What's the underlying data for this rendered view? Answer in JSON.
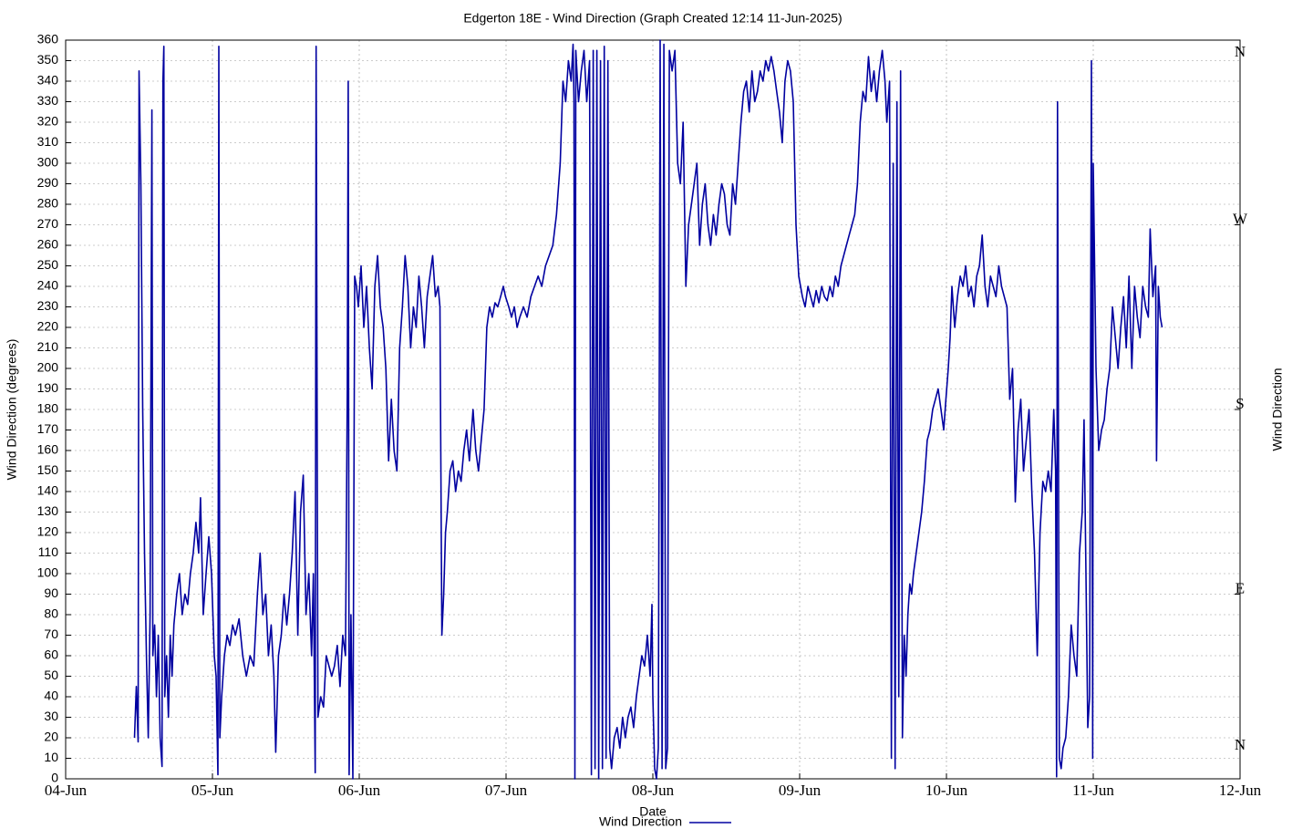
{
  "chart_data": {
    "type": "line",
    "title": "Edgerton 18E - Wind Direction (Graph Created 12:14 11-Jun-2025)",
    "x_label": "Date",
    "y_label": "Wind Direction (degrees)",
    "y2_label": "Wind Direction",
    "x": [
      "2025-06-04T11:15",
      "2025-06-04T11:33",
      "2025-06-04T11:51",
      "2025-06-04T12:00",
      "2025-06-04T12:18",
      "2025-06-04T12:36",
      "2025-06-04T12:54",
      "2025-06-04T13:12",
      "2025-06-04T13:30",
      "2025-06-04T13:48",
      "2025-06-04T14:06",
      "2025-06-04T14:15",
      "2025-06-04T14:33",
      "2025-06-04T14:51",
      "2025-06-04T15:09",
      "2025-06-04T15:27",
      "2025-06-04T15:45",
      "2025-06-04T15:54",
      "2025-06-04T16:03",
      "2025-06-04T16:12",
      "2025-06-04T16:30",
      "2025-06-04T16:48",
      "2025-06-04T17:06",
      "2025-06-04T17:24",
      "2025-06-04T17:42",
      "2025-06-04T18:09",
      "2025-06-04T18:36",
      "2025-06-04T19:03",
      "2025-06-04T19:30",
      "2025-06-04T19:57",
      "2025-06-04T20:24",
      "2025-06-04T20:51",
      "2025-06-04T21:18",
      "2025-06-04T21:45",
      "2025-06-04T22:03",
      "2025-06-04T22:30",
      "2025-06-04T22:57",
      "2025-06-04T23:24",
      "2025-06-04T23:51",
      "2025-06-05T00:18",
      "2025-06-05T00:36",
      "2025-06-05T00:54",
      "2025-06-05T01:03",
      "2025-06-05T01:12",
      "2025-06-05T01:30",
      "2025-06-05T01:57",
      "2025-06-05T02:24",
      "2025-06-05T02:51",
      "2025-06-05T03:18",
      "2025-06-05T03:45",
      "2025-06-05T04:21",
      "2025-06-05T04:57",
      "2025-06-05T05:33",
      "2025-06-05T06:09",
      "2025-06-05T06:45",
      "2025-06-05T07:21",
      "2025-06-05T07:48",
      "2025-06-05T08:15",
      "2025-06-05T08:42",
      "2025-06-05T09:09",
      "2025-06-05T09:36",
      "2025-06-05T10:03",
      "2025-06-05T10:21",
      "2025-06-05T10:48",
      "2025-06-05T11:15",
      "2025-06-05T11:42",
      "2025-06-05T12:09",
      "2025-06-05T12:36",
      "2025-06-05T13:03",
      "2025-06-05T13:30",
      "2025-06-05T13:57",
      "2025-06-05T14:24",
      "2025-06-05T14:51",
      "2025-06-05T15:18",
      "2025-06-05T15:45",
      "2025-06-05T16:12",
      "2025-06-05T16:30",
      "2025-06-05T16:48",
      "2025-06-05T16:57",
      "2025-06-05T17:15",
      "2025-06-05T17:42",
      "2025-06-05T18:09",
      "2025-06-05T18:36",
      "2025-06-05T19:03",
      "2025-06-05T19:30",
      "2025-06-05T19:57",
      "2025-06-05T20:24",
      "2025-06-05T20:51",
      "2025-06-05T21:18",
      "2025-06-05T21:45",
      "2025-06-05T22:03",
      "2025-06-05T22:12",
      "2025-06-05T22:21",
      "2025-06-05T22:39",
      "2025-06-05T22:57",
      "2025-06-05T23:15",
      "2025-06-05T23:33",
      "2025-06-05T23:51",
      "2025-06-06T00:18",
      "2025-06-06T00:45",
      "2025-06-06T01:12",
      "2025-06-06T01:39",
      "2025-06-06T02:06",
      "2025-06-06T02:33",
      "2025-06-06T03:00",
      "2025-06-06T03:27",
      "2025-06-06T03:54",
      "2025-06-06T04:21",
      "2025-06-06T04:48",
      "2025-06-06T05:15",
      "2025-06-06T05:42",
      "2025-06-06T06:09",
      "2025-06-06T06:36",
      "2025-06-06T07:03",
      "2025-06-06T07:30",
      "2025-06-06T07:57",
      "2025-06-06T08:24",
      "2025-06-06T08:51",
      "2025-06-06T09:18",
      "2025-06-06T09:45",
      "2025-06-06T10:12",
      "2025-06-06T10:39",
      "2025-06-06T11:06",
      "2025-06-06T11:33",
      "2025-06-06T12:00",
      "2025-06-06T12:27",
      "2025-06-06T12:54",
      "2025-06-06T13:12",
      "2025-06-06T13:30",
      "2025-06-06T13:48",
      "2025-06-06T14:06",
      "2025-06-06T14:24",
      "2025-06-06T14:51",
      "2025-06-06T15:18",
      "2025-06-06T15:45",
      "2025-06-06T16:12",
      "2025-06-06T16:39",
      "2025-06-06T17:06",
      "2025-06-06T17:33",
      "2025-06-06T18:00",
      "2025-06-06T18:36",
      "2025-06-06T19:03",
      "2025-06-06T19:30",
      "2025-06-06T19:57",
      "2025-06-06T20:24",
      "2025-06-06T20:51",
      "2025-06-06T21:18",
      "2025-06-06T21:45",
      "2025-06-06T22:12",
      "2025-06-06T22:39",
      "2025-06-06T23:06",
      "2025-06-06T23:33",
      "2025-06-06T23:55",
      "2025-06-07T00:27",
      "2025-06-07T00:54",
      "2025-06-07T01:21",
      "2025-06-07T01:48",
      "2025-06-07T02:15",
      "2025-06-07T02:51",
      "2025-06-07T03:27",
      "2025-06-07T04:03",
      "2025-06-07T04:39",
      "2025-06-07T05:15",
      "2025-06-07T05:51",
      "2025-06-07T06:27",
      "2025-06-07T07:03",
      "2025-06-07T07:39",
      "2025-06-07T08:15",
      "2025-06-07T08:51",
      "2025-06-07T09:18",
      "2025-06-07T09:45",
      "2025-06-07T10:12",
      "2025-06-07T10:39",
      "2025-06-07T10:57",
      "2025-06-07T11:06",
      "2025-06-07T11:15",
      "2025-06-07T11:24",
      "2025-06-07T11:51",
      "2025-06-07T12:18",
      "2025-06-07T12:45",
      "2025-06-07T13:12",
      "2025-06-07T13:39",
      "2025-06-07T13:57",
      "2025-06-07T14:15",
      "2025-06-07T14:33",
      "2025-06-07T14:51",
      "2025-06-07T15:09",
      "2025-06-07T15:27",
      "2025-06-07T15:45",
      "2025-06-07T16:03",
      "2025-06-07T16:21",
      "2025-06-07T16:39",
      "2025-06-07T16:57",
      "2025-06-07T17:15",
      "2025-06-07T17:42",
      "2025-06-07T18:09",
      "2025-06-07T18:36",
      "2025-06-07T19:03",
      "2025-06-07T19:30",
      "2025-06-07T19:57",
      "2025-06-07T20:24",
      "2025-06-07T20:51",
      "2025-06-07T21:18",
      "2025-06-07T21:45",
      "2025-06-07T22:12",
      "2025-06-07T22:39",
      "2025-06-07T23:06",
      "2025-06-07T23:33",
      "2025-06-07T23:51",
      "2025-06-08T00:00",
      "2025-06-08T00:18",
      "2025-06-08T00:36",
      "2025-06-08T00:54",
      "2025-06-08T01:12",
      "2025-06-08T01:30",
      "2025-06-08T01:48",
      "2025-06-08T02:06",
      "2025-06-08T02:24",
      "2025-06-08T02:42",
      "2025-06-08T03:09",
      "2025-06-08T03:36",
      "2025-06-08T04:03",
      "2025-06-08T04:30",
      "2025-06-08T04:57",
      "2025-06-08T05:24",
      "2025-06-08T05:51",
      "2025-06-08T06:18",
      "2025-06-08T06:45",
      "2025-06-08T07:12",
      "2025-06-08T07:39",
      "2025-06-08T08:06",
      "2025-06-08T08:33",
      "2025-06-08T09:00",
      "2025-06-08T09:27",
      "2025-06-08T09:54",
      "2025-06-08T10:21",
      "2025-06-08T10:48",
      "2025-06-08T11:15",
      "2025-06-08T11:42",
      "2025-06-08T12:09",
      "2025-06-08T12:36",
      "2025-06-08T13:03",
      "2025-06-08T13:30",
      "2025-06-08T13:57",
      "2025-06-08T14:24",
      "2025-06-08T14:51",
      "2025-06-08T15:18",
      "2025-06-08T15:45",
      "2025-06-08T16:12",
      "2025-06-08T16:39",
      "2025-06-08T17:06",
      "2025-06-08T17:33",
      "2025-06-08T18:00",
      "2025-06-08T18:27",
      "2025-06-08T18:54",
      "2025-06-08T19:21",
      "2025-06-08T19:48",
      "2025-06-08T20:15",
      "2025-06-08T20:42",
      "2025-06-08T21:09",
      "2025-06-08T21:36",
      "2025-06-08T22:03",
      "2025-06-08T22:30",
      "2025-06-08T22:57",
      "2025-06-08T23:24",
      "2025-06-08T23:51",
      "2025-06-09T00:27",
      "2025-06-09T00:54",
      "2025-06-09T01:21",
      "2025-06-09T01:48",
      "2025-06-09T02:15",
      "2025-06-09T02:42",
      "2025-06-09T03:09",
      "2025-06-09T03:36",
      "2025-06-09T04:03",
      "2025-06-09T04:30",
      "2025-06-09T04:57",
      "2025-06-09T05:24",
      "2025-06-09T05:51",
      "2025-06-09T06:18",
      "2025-06-09T06:45",
      "2025-06-09T07:12",
      "2025-06-09T07:39",
      "2025-06-09T08:06",
      "2025-06-09T08:33",
      "2025-06-09T09:00",
      "2025-06-09T09:27",
      "2025-06-09T09:54",
      "2025-06-09T10:21",
      "2025-06-09T10:48",
      "2025-06-09T11:15",
      "2025-06-09T11:42",
      "2025-06-09T12:09",
      "2025-06-09T12:36",
      "2025-06-09T13:03",
      "2025-06-09T13:30",
      "2025-06-09T13:57",
      "2025-06-09T14:15",
      "2025-06-09T14:42",
      "2025-06-09T15:00",
      "2025-06-09T15:18",
      "2025-06-09T15:36",
      "2025-06-09T15:54",
      "2025-06-09T16:12",
      "2025-06-09T16:30",
      "2025-06-09T16:48",
      "2025-06-09T17:06",
      "2025-06-09T17:24",
      "2025-06-09T17:42",
      "2025-06-09T18:00",
      "2025-06-09T18:18",
      "2025-06-09T18:36",
      "2025-06-09T19:03",
      "2025-06-09T19:30",
      "2025-06-09T19:57",
      "2025-06-09T20:24",
      "2025-06-09T20:51",
      "2025-06-09T21:18",
      "2025-06-09T21:45",
      "2025-06-09T22:12",
      "2025-06-09T22:39",
      "2025-06-09T23:06",
      "2025-06-09T23:33",
      "2025-06-09T23:55",
      "2025-06-10T00:18",
      "2025-06-10T00:36",
      "2025-06-10T00:54",
      "2025-06-10T01:21",
      "2025-06-10T01:48",
      "2025-06-10T02:15",
      "2025-06-10T02:42",
      "2025-06-10T03:09",
      "2025-06-10T03:36",
      "2025-06-10T04:03",
      "2025-06-10T04:30",
      "2025-06-10T04:57",
      "2025-06-10T05:24",
      "2025-06-10T05:51",
      "2025-06-10T06:18",
      "2025-06-10T06:45",
      "2025-06-10T07:12",
      "2025-06-10T07:39",
      "2025-06-10T08:06",
      "2025-06-10T08:33",
      "2025-06-10T09:00",
      "2025-06-10T09:27",
      "2025-06-10T09:54",
      "2025-06-10T10:21",
      "2025-06-10T10:48",
      "2025-06-10T11:15",
      "2025-06-10T11:42",
      "2025-06-10T12:09",
      "2025-06-10T12:36",
      "2025-06-10T13:03",
      "2025-06-10T13:30",
      "2025-06-10T13:57",
      "2025-06-10T14:24",
      "2025-06-10T14:51",
      "2025-06-10T15:18",
      "2025-06-10T15:45",
      "2025-06-10T16:12",
      "2025-06-10T16:39",
      "2025-06-10T17:06",
      "2025-06-10T17:33",
      "2025-06-10T17:51",
      "2025-06-10T18:00",
      "2025-06-10T18:09",
      "2025-06-10T18:27",
      "2025-06-10T18:45",
      "2025-06-10T19:03",
      "2025-06-10T19:30",
      "2025-06-10T19:57",
      "2025-06-10T20:24",
      "2025-06-10T20:51",
      "2025-06-10T21:18",
      "2025-06-10T21:45",
      "2025-06-10T22:12",
      "2025-06-10T22:30",
      "2025-06-10T22:48",
      "2025-06-10T23:06",
      "2025-06-10T23:24",
      "2025-06-10T23:42",
      "2025-06-10T23:55",
      "2025-06-11T00:00",
      "2025-06-11T00:27",
      "2025-06-11T00:54",
      "2025-06-11T01:21",
      "2025-06-11T01:48",
      "2025-06-11T02:15",
      "2025-06-11T02:42",
      "2025-06-11T03:09",
      "2025-06-11T03:36",
      "2025-06-11T04:03",
      "2025-06-11T04:30",
      "2025-06-11T04:57",
      "2025-06-11T05:24",
      "2025-06-11T05:51",
      "2025-06-11T06:18",
      "2025-06-11T06:45",
      "2025-06-11T07:12",
      "2025-06-11T07:39",
      "2025-06-11T08:06",
      "2025-06-11T08:33",
      "2025-06-11T09:00",
      "2025-06-11T09:18",
      "2025-06-11T09:45",
      "2025-06-11T10:12",
      "2025-06-11T10:21",
      "2025-06-11T10:39",
      "2025-06-11T10:57",
      "2025-06-11T11:15"
    ],
    "series": [
      {
        "name": "Wind Direction",
        "color": "#0000a0",
        "values": [
          20,
          45,
          18,
          345,
          290,
          180,
          110,
          60,
          20,
          80,
          326,
          60,
          75,
          40,
          70,
          20,
          6,
          340,
          357,
          40,
          60,
          30,
          70,
          50,
          75,
          90,
          100,
          80,
          90,
          85,
          100,
          110,
          125,
          110,
          137,
          80,
          100,
          118,
          100,
          60,
          50,
          2,
          357,
          20,
          40,
          60,
          70,
          65,
          75,
          70,
          78,
          60,
          50,
          60,
          55,
          90,
          110,
          80,
          90,
          60,
          75,
          50,
          13,
          60,
          70,
          90,
          75,
          90,
          110,
          140,
          70,
          130,
          148,
          80,
          100,
          60,
          100,
          3,
          357,
          30,
          40,
          35,
          60,
          55,
          50,
          55,
          65,
          45,
          70,
          60,
          190,
          340,
          2,
          80,
          0,
          245,
          240,
          230,
          250,
          220,
          240,
          210,
          190,
          240,
          255,
          230,
          220,
          200,
          155,
          185,
          160,
          150,
          210,
          230,
          255,
          240,
          210,
          230,
          220,
          245,
          230,
          210,
          235,
          245,
          255,
          235,
          240,
          230,
          70,
          90,
          120,
          130,
          150,
          155,
          140,
          150,
          145,
          160,
          170,
          155,
          180,
          160,
          150,
          165,
          180,
          220,
          230,
          225,
          232,
          230,
          235,
          240,
          235,
          230,
          225,
          230,
          220,
          225,
          230,
          225,
          235,
          240,
          245,
          240,
          250,
          255,
          260,
          275,
          300,
          340,
          330,
          350,
          340,
          358,
          330,
          0,
          355,
          330,
          345,
          355,
          330,
          350,
          2,
          355,
          5,
          355,
          0,
          350,
          5,
          357,
          10,
          350,
          15,
          5,
          20,
          25,
          15,
          30,
          20,
          30,
          35,
          25,
          40,
          50,
          60,
          55,
          70,
          50,
          85,
          40,
          5,
          0,
          15,
          360,
          5,
          358,
          5,
          15,
          355,
          345,
          355,
          300,
          290,
          320,
          240,
          270,
          280,
          290,
          300,
          260,
          280,
          290,
          270,
          260,
          275,
          265,
          280,
          290,
          285,
          270,
          265,
          290,
          280,
          300,
          320,
          335,
          340,
          325,
          345,
          330,
          335,
          345,
          340,
          350,
          345,
          352,
          345,
          335,
          325,
          310,
          340,
          350,
          345,
          330,
          270,
          245,
          235,
          230,
          240,
          235,
          230,
          238,
          232,
          240,
          235,
          233,
          240,
          235,
          245,
          240,
          250,
          255,
          260,
          265,
          270,
          275,
          290,
          320,
          335,
          330,
          352,
          335,
          345,
          330,
          345,
          355,
          340,
          320,
          340,
          10,
          300,
          5,
          330,
          40,
          345,
          20,
          70,
          50,
          80,
          95,
          90,
          100,
          110,
          120,
          130,
          145,
          165,
          170,
          180,
          185,
          190,
          180,
          170,
          185,
          200,
          215,
          240,
          220,
          235,
          245,
          240,
          250,
          235,
          240,
          230,
          245,
          250,
          265,
          240,
          230,
          245,
          240,
          235,
          250,
          240,
          235,
          230,
          185,
          200,
          135,
          170,
          185,
          150,
          165,
          180,
          140,
          110,
          60,
          120,
          145,
          140,
          150,
          140,
          180,
          150,
          1,
          330,
          10,
          5,
          15,
          20,
          40,
          75,
          60,
          50,
          110,
          130,
          175,
          100,
          25,
          40,
          350,
          10,
          300,
          200,
          160,
          170,
          175,
          190,
          200,
          230,
          215,
          200,
          220,
          235,
          210,
          245,
          200,
          240,
          225,
          215,
          240,
          230,
          225,
          268,
          235,
          250,
          155,
          240,
          225,
          220
        ]
      }
    ],
    "xlim": [
      "2025-06-04T00:00",
      "2025-06-12T00:00"
    ],
    "xticks": [
      {
        "value": "2025-06-04T00:00",
        "label": "04-Jun"
      },
      {
        "value": "2025-06-05T00:00",
        "label": "05-Jun"
      },
      {
        "value": "2025-06-06T00:00",
        "label": "06-Jun"
      },
      {
        "value": "2025-06-07T00:00",
        "label": "07-Jun"
      },
      {
        "value": "2025-06-08T00:00",
        "label": "08-Jun"
      },
      {
        "value": "2025-06-09T00:00",
        "label": "09-Jun"
      },
      {
        "value": "2025-06-10T00:00",
        "label": "10-Jun"
      },
      {
        "value": "2025-06-11T00:00",
        "label": "11-Jun"
      },
      {
        "value": "2025-06-12T00:00",
        "label": "12-Jun"
      }
    ],
    "ylim": [
      0,
      360
    ],
    "yticks": [
      0,
      10,
      20,
      30,
      40,
      50,
      60,
      70,
      80,
      90,
      100,
      110,
      120,
      130,
      140,
      150,
      160,
      170,
      180,
      190,
      200,
      210,
      220,
      230,
      240,
      250,
      260,
      270,
      280,
      290,
      300,
      310,
      320,
      330,
      340,
      350,
      360
    ],
    "y2lim": [
      0,
      360
    ],
    "y2ticks": [
      {
        "value": 360,
        "label": "N"
      },
      {
        "value": 270,
        "label": "W"
      },
      {
        "value": 180,
        "label": "S"
      },
      {
        "value": 90,
        "label": "E"
      },
      {
        "value": 0,
        "label": "N"
      }
    ],
    "grid": true,
    "legend": "bottom"
  }
}
